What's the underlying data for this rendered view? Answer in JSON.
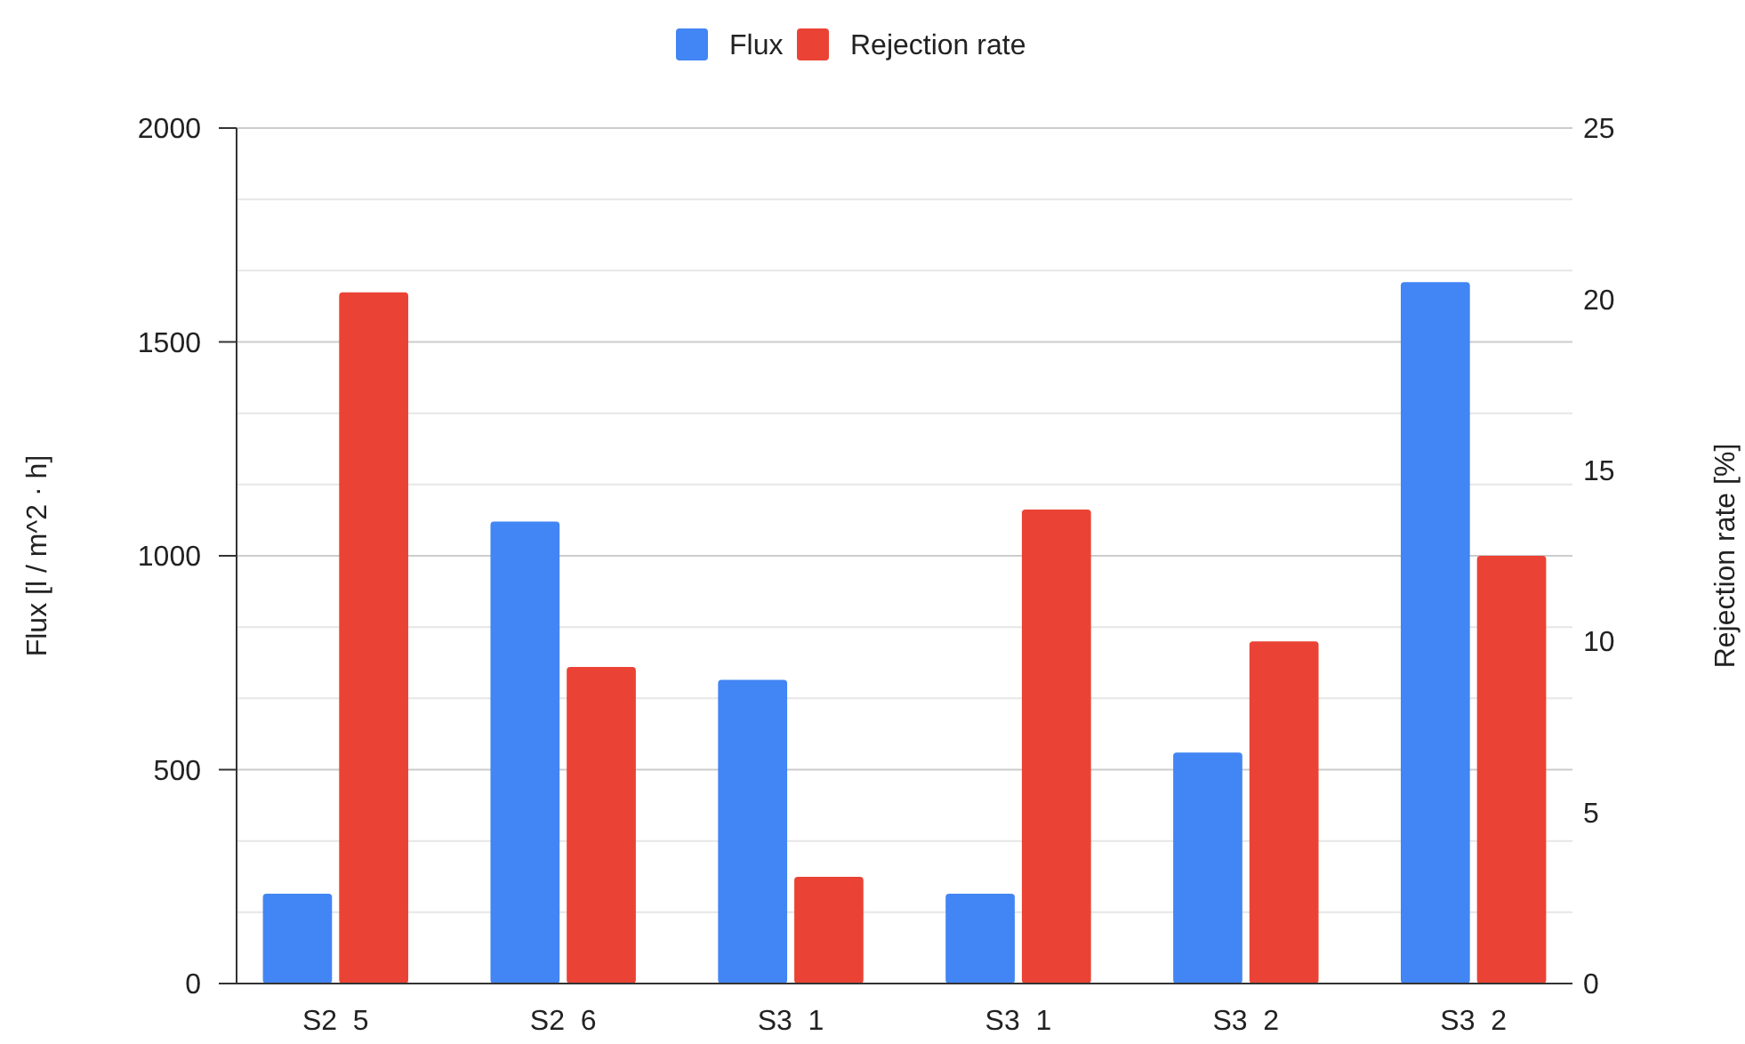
{
  "chart_data": {
    "type": "bar",
    "categories": [
      "S2  5",
      "S2  6",
      "S3  1",
      "S3  1",
      "S3  2",
      "S3  2"
    ],
    "series": [
      {
        "name": "Flux",
        "color": "#4285f4",
        "values": [
          210,
          1080,
          710,
          210,
          540,
          1640
        ]
      },
      {
        "name": "Rejection rate",
        "color": "#ea4335",
        "axis": "y2",
        "values": [
          20.2,
          9.25,
          3.12,
          13.85,
          10,
          12.5
        ]
      }
    ],
    "ylabel": "Flux [l / m^2 · h]",
    "y2label": "Rejection rate [%]",
    "ylim": [
      0,
      2000
    ],
    "yticks": [
      0,
      {
        "value": 166.7,
        "label": null
      },
      {
        "value": 333.3,
        "label": null
      },
      500,
      {
        "value": 666.7,
        "label": null
      },
      {
        "value": 833.3,
        "label": null
      },
      1000,
      {
        "value": 1166.7,
        "label": null
      },
      {
        "value": 1333.3,
        "label": null
      },
      1500,
      {
        "value": 1666.7,
        "label": null
      },
      {
        "value": 1833.3,
        "label": null
      },
      2000
    ],
    "y2lim": [
      0,
      25
    ],
    "y2ticks": [
      0,
      5,
      10,
      15,
      20,
      25
    ],
    "grid": "y",
    "legend": "top"
  }
}
